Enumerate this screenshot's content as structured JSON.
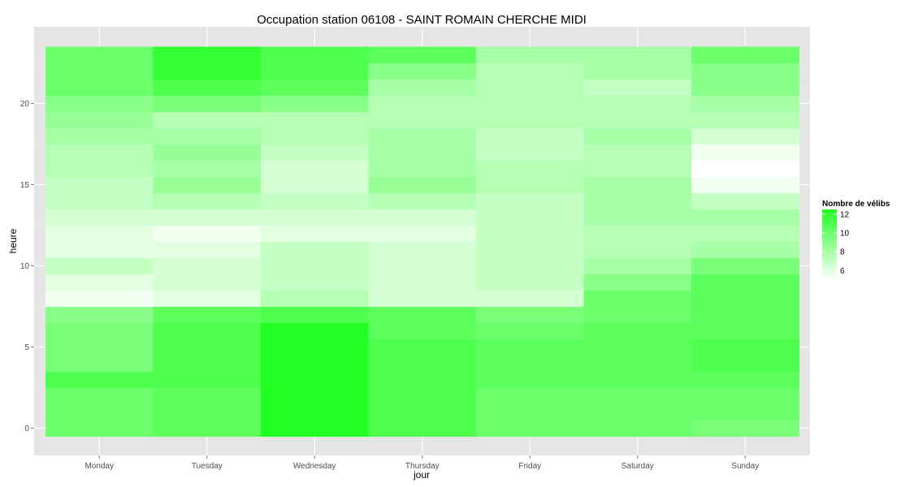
{
  "chart_data": {
    "type": "heatmap",
    "title": "Occupation station 06108 - SAINT ROMAIN CHERCHE MIDI",
    "xlabel": "jour",
    "ylabel": "heure",
    "days": [
      "Monday",
      "Tuesday",
      "Wednesday",
      "Thursday",
      "Friday",
      "Saturday",
      "Sunday"
    ],
    "hours": [
      0,
      1,
      2,
      3,
      4,
      5,
      6,
      7,
      8,
      9,
      10,
      11,
      12,
      13,
      14,
      15,
      16,
      17,
      18,
      19,
      20,
      21,
      22,
      23
    ],
    "y_ticks": [
      0,
      5,
      10,
      15,
      20
    ],
    "ylim": [
      -0.5,
      23.5
    ],
    "color_scale": {
      "low_color": "#ffffff",
      "high_color": "#22ff22",
      "min": 5.0,
      "max": 12.5
    },
    "legend": {
      "title": "Nombre de vélibs",
      "ticks": [
        12,
        10,
        8,
        6
      ],
      "position": "right"
    },
    "grid": true,
    "values": [
      [
        10.0,
        10.5,
        12.5,
        11.0,
        10.0,
        10.0,
        9.5
      ],
      [
        10.0,
        10.5,
        12.5,
        11.0,
        10.0,
        10.0,
        10.0
      ],
      [
        10.0,
        10.5,
        12.5,
        11.0,
        10.0,
        10.0,
        10.0
      ],
      [
        11.0,
        11.0,
        12.5,
        11.0,
        10.5,
        10.5,
        10.5
      ],
      [
        9.5,
        11.0,
        12.5,
        11.0,
        10.5,
        10.5,
        11.0
      ],
      [
        9.5,
        11.0,
        12.5,
        11.0,
        10.5,
        10.5,
        11.0
      ],
      [
        9.5,
        11.0,
        12.5,
        10.5,
        10.0,
        10.5,
        10.5
      ],
      [
        9.0,
        10.5,
        11.0,
        10.5,
        9.5,
        10.0,
        10.5
      ],
      [
        5.5,
        6.0,
        7.5,
        6.5,
        6.5,
        10.0,
        10.5
      ],
      [
        6.0,
        6.5,
        7.0,
        6.5,
        7.0,
        9.0,
        10.5
      ],
      [
        7.0,
        6.5,
        7.0,
        6.5,
        7.0,
        8.0,
        9.5
      ],
      [
        6.0,
        6.0,
        7.0,
        6.5,
        7.0,
        7.5,
        8.0
      ],
      [
        6.0,
        5.5,
        6.0,
        6.0,
        7.0,
        7.5,
        7.5
      ],
      [
        6.5,
        6.5,
        6.5,
        6.5,
        7.0,
        8.0,
        8.0
      ],
      [
        7.0,
        7.5,
        7.0,
        7.5,
        7.0,
        8.0,
        7.0
      ],
      [
        7.0,
        8.5,
        6.5,
        8.5,
        7.5,
        8.0,
        5.5
      ],
      [
        7.5,
        8.0,
        6.5,
        8.0,
        7.5,
        7.5,
        5.0
      ],
      [
        7.5,
        8.5,
        7.0,
        8.0,
        7.0,
        7.5,
        5.5
      ],
      [
        8.0,
        8.0,
        7.5,
        8.0,
        7.0,
        8.0,
        6.5
      ],
      [
        8.5,
        7.5,
        7.5,
        7.5,
        7.5,
        7.5,
        7.5
      ],
      [
        9.0,
        9.5,
        9.0,
        7.5,
        7.5,
        7.5,
        8.0
      ],
      [
        10.0,
        11.0,
        10.5,
        8.0,
        7.5,
        7.0,
        9.0
      ],
      [
        10.0,
        12.0,
        11.0,
        9.0,
        7.5,
        8.0,
        9.0
      ],
      [
        10.0,
        12.0,
        11.0,
        10.5,
        8.0,
        8.0,
        10.0
      ]
    ]
  }
}
